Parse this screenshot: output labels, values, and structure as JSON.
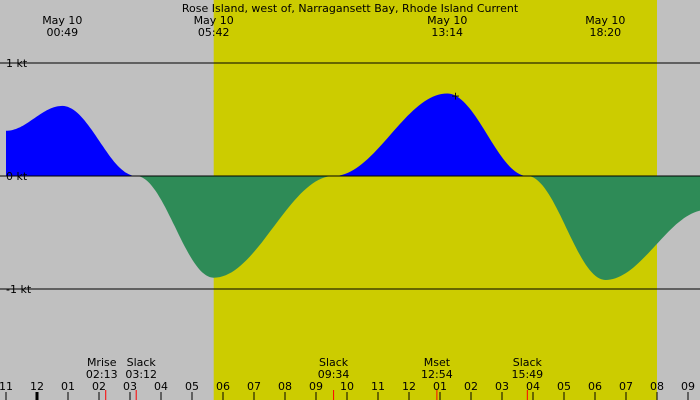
{
  "title": "Rose Island, west of, Narragansett Bay, Rhode Island Current",
  "colors": {
    "night": "#c0c0c0",
    "day": "#cccc00",
    "flood": "#0000ff",
    "ebb": "#2e8b57",
    "line": "#000000",
    "moon_tick": "#ff0000"
  },
  "chart_data": {
    "type": "area",
    "title": "Rose Island, west of, Narragansett Bay, Rhode Island Current",
    "xlabel": "",
    "ylabel": "",
    "x_unit": "hour of day (May 10 = 0–24; values below 0 are May 9)",
    "xlim": [
      -1.0,
      21.6
    ],
    "ylim": [
      -1.6,
      1.6
    ],
    "y_ticks": [
      {
        "value": 1,
        "label": "1 kt"
      },
      {
        "value": 0,
        "label": "0 kt"
      },
      {
        "value": -1,
        "label": "-1 kt"
      }
    ],
    "x_ticks": [
      {
        "value": -1,
        "label": "11"
      },
      {
        "value": 0,
        "label": "12"
      },
      {
        "value": 1,
        "label": "01"
      },
      {
        "value": 2,
        "label": "02"
      },
      {
        "value": 3,
        "label": "03"
      },
      {
        "value": 4,
        "label": "04"
      },
      {
        "value": 5,
        "label": "05"
      },
      {
        "value": 6,
        "label": "06"
      },
      {
        "value": 7,
        "label": "07"
      },
      {
        "value": 8,
        "label": "08"
      },
      {
        "value": 9,
        "label": "09"
      },
      {
        "value": 10,
        "label": "10"
      },
      {
        "value": 11,
        "label": "11"
      },
      {
        "value": 12,
        "label": "12"
      },
      {
        "value": 13,
        "label": "01"
      },
      {
        "value": 14,
        "label": "02"
      },
      {
        "value": 15,
        "label": "03"
      },
      {
        "value": 16,
        "label": "04"
      },
      {
        "value": 17,
        "label": "05"
      },
      {
        "value": 18,
        "label": "06"
      },
      {
        "value": 19,
        "label": "07"
      },
      {
        "value": 20,
        "label": "08"
      },
      {
        "value": 21,
        "label": "09"
      }
    ],
    "daylight": [
      5.7,
      20.0
    ],
    "series": [
      {
        "points": [
          [
            -1.0,
            0.4
          ],
          [
            0.817,
            0.62
          ],
          [
            3.2,
            0.0
          ],
          [
            5.7,
            -0.9
          ],
          [
            9.567,
            0.0
          ],
          [
            13.233,
            0.73
          ],
          [
            15.817,
            0.0
          ],
          [
            18.333,
            -0.92
          ],
          [
            21.6,
            -0.3
          ]
        ]
      }
    ],
    "top_labels": [
      {
        "x": 0.817,
        "date": "May 10",
        "time": "00:49"
      },
      {
        "x": 5.7,
        "date": "May 10",
        "time": "05:42"
      },
      {
        "x": 13.233,
        "date": "May 10",
        "time": "13:14"
      },
      {
        "x": 18.333,
        "date": "May 10",
        "time": "18:20"
      }
    ],
    "bottom_events": [
      {
        "x": 2.217,
        "name": "Mrise",
        "time": "02:13",
        "tick": "moon"
      },
      {
        "x": 3.2,
        "name": "Slack",
        "time": "03:12",
        "tick": "slack"
      },
      {
        "x": 9.567,
        "name": "Slack",
        "time": "09:34",
        "tick": "slack"
      },
      {
        "x": 12.9,
        "name": "Mset",
        "time": "12:54",
        "tick": "moon"
      },
      {
        "x": 15.817,
        "name": "Slack",
        "time": "15:49",
        "tick": "slack"
      }
    ],
    "midnight_tick": 0,
    "max_marker": {
      "x": 13.5,
      "y": 0.72,
      "symbol": "+"
    }
  }
}
